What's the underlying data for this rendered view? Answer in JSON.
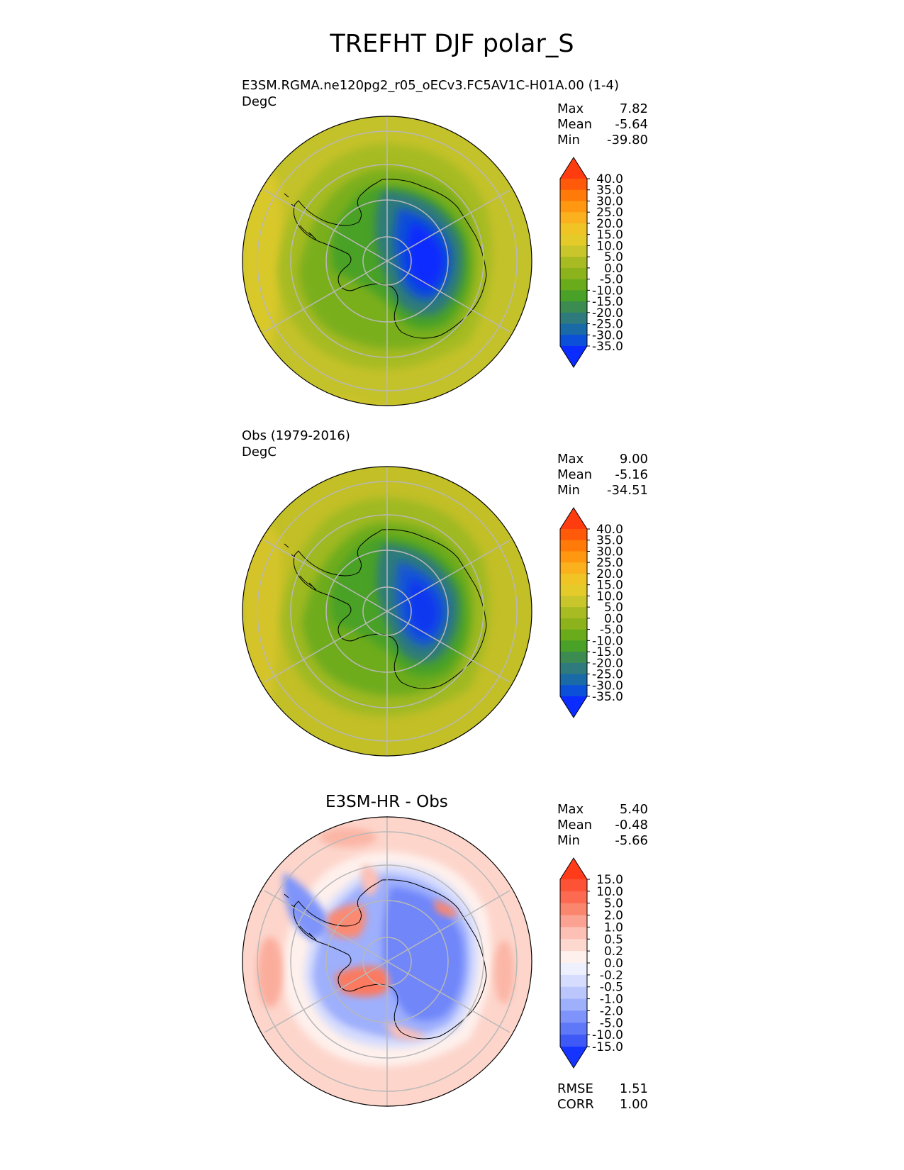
{
  "figure": {
    "title": "TREFHT DJF polar_S"
  },
  "panels": [
    {
      "title_line1": "E3SM.RGMA.ne120pg2_r05_oECv3.FC5AV1C-H01A.00 (1-4)",
      "units": "DegC",
      "stats": [
        {
          "label": "Max",
          "value": "7.82"
        },
        {
          "label": "Mean",
          "value": "-5.64"
        },
        {
          "label": "Min",
          "value": "-39.80"
        }
      ]
    },
    {
      "title_line1": "Obs (1979-2016)",
      "units": "DegC",
      "stats": [
        {
          "label": "Max",
          "value": "9.00"
        },
        {
          "label": "Mean",
          "value": "-5.16"
        },
        {
          "label": "Min",
          "value": "-34.51"
        }
      ]
    },
    {
      "title_center": "E3SM-HR - Obs",
      "stats": [
        {
          "label": "Max",
          "value": "5.40"
        },
        {
          "label": "Mean",
          "value": "-0.48"
        },
        {
          "label": "Min",
          "value": "-5.66"
        }
      ],
      "metrics": [
        {
          "label": "RMSE",
          "value": "1.51"
        },
        {
          "label": "CORR",
          "value": "1.00"
        }
      ]
    }
  ],
  "colorbars": {
    "absolute": {
      "levels": [
        "40.0",
        "35.0",
        "30.0",
        "25.0",
        "20.0",
        "15.0",
        "10.0",
        "5.0",
        "0.0",
        "-5.0",
        "-10.0",
        "-15.0",
        "-20.0",
        "-25.0",
        "-30.0",
        "-35.0"
      ],
      "colors_top_to_bottom": [
        "#ff3b10",
        "#ff5a0a",
        "#ff7a08",
        "#ff9810",
        "#fbb01e",
        "#f1c426",
        "#e4cb2a",
        "#c9c62b",
        "#a9bb22",
        "#8cb31c",
        "#6aab1c",
        "#4aa128",
        "#3c8c52",
        "#2f7a7c",
        "#1a6aa8",
        "#0c4fd8",
        "#0a2cff"
      ]
    },
    "difference": {
      "levels": [
        "15.0",
        "10.0",
        "5.0",
        "2.0",
        "1.0",
        "0.5",
        "0.2",
        "0.0",
        "-0.2",
        "-0.5",
        "-1.0",
        "-2.0",
        "-5.0",
        "-10.0",
        "-15.0"
      ],
      "colors_top_to_bottom": [
        "#ff3b1a",
        "#fd5236",
        "#fc6a52",
        "#fb866e",
        "#fba292",
        "#fdc0b5",
        "#fdd8cf",
        "#fef0ec",
        "#eef0fe",
        "#d6dcfd",
        "#bbc6fd",
        "#9eaffc",
        "#7f94fa",
        "#5f78f8",
        "#3f59f6",
        "#1634ff"
      ]
    }
  },
  "chart_data": [
    {
      "type": "heatmap",
      "projection": "south-polar-stereographic",
      "title": "E3SM.RGMA.ne120pg2_r05_oECv3.FC5AV1C-H01A.00 (1-4)",
      "units": "DegC",
      "summary": {
        "max": 7.82,
        "mean": -5.64,
        "min": -39.8
      },
      "color_levels": [
        -35,
        -30,
        -25,
        -20,
        -15,
        -10,
        -5,
        0,
        5,
        10,
        15,
        20,
        25,
        30,
        35,
        40
      ]
    },
    {
      "type": "heatmap",
      "projection": "south-polar-stereographic",
      "title": "Obs (1979-2016)",
      "units": "DegC",
      "summary": {
        "max": 9.0,
        "mean": -5.16,
        "min": -34.51
      },
      "color_levels": [
        -35,
        -30,
        -25,
        -20,
        -15,
        -10,
        -5,
        0,
        5,
        10,
        15,
        20,
        25,
        30,
        35,
        40
      ]
    },
    {
      "type": "heatmap",
      "projection": "south-polar-stereographic",
      "title": "E3SM-HR - Obs",
      "summary": {
        "max": 5.4,
        "mean": -0.48,
        "min": -5.66,
        "rmse": 1.51,
        "corr": 1.0
      },
      "color_levels": [
        -15,
        -10,
        -5,
        -2,
        -1,
        -0.5,
        -0.2,
        0,
        0.2,
        0.5,
        1,
        2,
        5,
        10,
        15
      ]
    }
  ]
}
